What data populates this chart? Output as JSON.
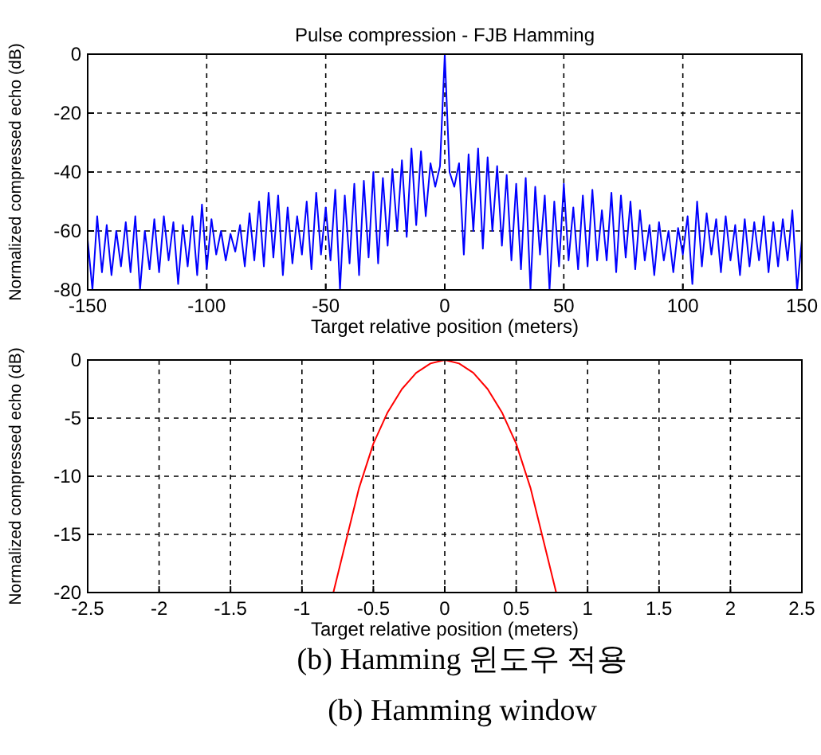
{
  "chart_data": [
    {
      "type": "line",
      "title": "Pulse compression - FJB  Hamming",
      "xlabel": "Target relative position (meters)",
      "ylabel": "Normalized compressed echo (dB)",
      "xlim": [
        -150,
        150
      ],
      "ylim": [
        -80,
        0
      ],
      "xticks": [
        -150,
        -100,
        -50,
        0,
        50,
        100,
        150
      ],
      "yticks": [
        -80,
        -60,
        -40,
        -20,
        0
      ],
      "grid": true,
      "line_style": "solid",
      "x": [
        -150,
        -148,
        -146,
        -144,
        -142,
        -140,
        -138,
        -136,
        -134,
        -132,
        -130,
        -128,
        -126,
        -124,
        -122,
        -120,
        -118,
        -116,
        -114,
        -112,
        -110,
        -108,
        -106,
        -104,
        -102,
        -100,
        -98,
        -96,
        -94,
        -92,
        -90,
        -88,
        -86,
        -84,
        -82,
        -80,
        -78,
        -76,
        -74,
        -72,
        -70,
        -68,
        -66,
        -64,
        -62,
        -60,
        -58,
        -56,
        -54,
        -52,
        -50,
        -48,
        -46,
        -44,
        -42,
        -40,
        -38,
        -36,
        -34,
        -32,
        -30,
        -28,
        -26,
        -24,
        -22,
        -20,
        -18,
        -16,
        -14,
        -12,
        -10,
        -8,
        -6,
        -4,
        -2,
        0,
        2,
        4,
        6,
        8,
        10,
        12,
        14,
        16,
        18,
        20,
        22,
        24,
        26,
        28,
        30,
        32,
        34,
        36,
        38,
        40,
        42,
        44,
        46,
        48,
        50,
        52,
        54,
        56,
        58,
        60,
        62,
        64,
        66,
        68,
        70,
        72,
        74,
        76,
        78,
        80,
        82,
        84,
        86,
        88,
        90,
        92,
        94,
        96,
        98,
        100,
        102,
        104,
        106,
        108,
        110,
        112,
        114,
        116,
        118,
        120,
        122,
        124,
        126,
        128,
        130,
        132,
        134,
        136,
        138,
        140,
        142,
        144,
        146,
        148,
        150
      ],
      "series": [
        {
          "color": "#0000ff",
          "values": [
            -63,
            -80,
            -55,
            -74,
            -58,
            -75,
            -60,
            -72,
            -57,
            -74,
            -55,
            -80,
            -60,
            -73,
            -56,
            -74,
            -55,
            -70,
            -57,
            -78,
            -58,
            -72,
            -55,
            -75,
            -51,
            -73,
            -56,
            -68,
            -60,
            -70,
            -61,
            -67,
            -58,
            -72,
            -54,
            -70,
            -50,
            -72,
            -47,
            -69,
            -48,
            -75,
            -52,
            -71,
            -55,
            -68,
            -50,
            -73,
            -47,
            -68,
            -52,
            -70,
            -46,
            -80,
            -48,
            -71,
            -44,
            -75,
            -43,
            -69,
            -40,
            -71,
            -42,
            -65,
            -39,
            -60,
            -36,
            -62,
            -32,
            -58,
            -33,
            -55,
            -37,
            -45,
            -38,
            0,
            -40,
            -45,
            -37,
            -68,
            -34,
            -60,
            -32,
            -66,
            -35,
            -60,
            -38,
            -65,
            -41,
            -70,
            -44,
            -73,
            -42,
            -80,
            -45,
            -68,
            -48,
            -80,
            -50,
            -72,
            -44,
            -70,
            -52,
            -73,
            -48,
            -72,
            -46,
            -70,
            -53,
            -70,
            -47,
            -74,
            -48,
            -69,
            -50,
            -73,
            -53,
            -70,
            -58,
            -75,
            -57,
            -70,
            -60,
            -74,
            -59,
            -68,
            -55,
            -78,
            -50,
            -72,
            -54,
            -68,
            -56,
            -74,
            -55,
            -70,
            -58,
            -75,
            -56,
            -72,
            -57,
            -70,
            -55,
            -74,
            -57,
            -72,
            -56,
            -70,
            -53,
            -80,
            -63
          ]
        }
      ]
    },
    {
      "type": "line",
      "xlabel": "Target relative position (meters)",
      "ylabel": "Normalized compressed echo (dB)",
      "xlim": [
        -2.5,
        2.5
      ],
      "ylim": [
        -20,
        0
      ],
      "xticks": [
        -2.5,
        -2,
        -1.5,
        -1,
        -0.5,
        0,
        0.5,
        1,
        1.5,
        2,
        2.5
      ],
      "yticks": [
        -20,
        -15,
        -10,
        -5,
        0
      ],
      "grid": true,
      "line_style": "solid",
      "x": [
        -0.78,
        -0.7,
        -0.6,
        -0.5,
        -0.4,
        -0.3,
        -0.2,
        -0.1,
        0,
        0.1,
        0.2,
        0.3,
        0.4,
        0.5,
        0.6,
        0.7,
        0.78
      ],
      "series": [
        {
          "color": "#ff0000",
          "values": [
            -20,
            -16,
            -11,
            -7.2,
            -4.5,
            -2.5,
            -1.1,
            -0.3,
            0,
            -0.3,
            -1.1,
            -2.5,
            -4.5,
            -7.2,
            -11,
            -16,
            -20
          ]
        }
      ],
      "annotations": [
        "(b) Hamming 윈도우 적용",
        "(b) Hamming window"
      ]
    }
  ]
}
